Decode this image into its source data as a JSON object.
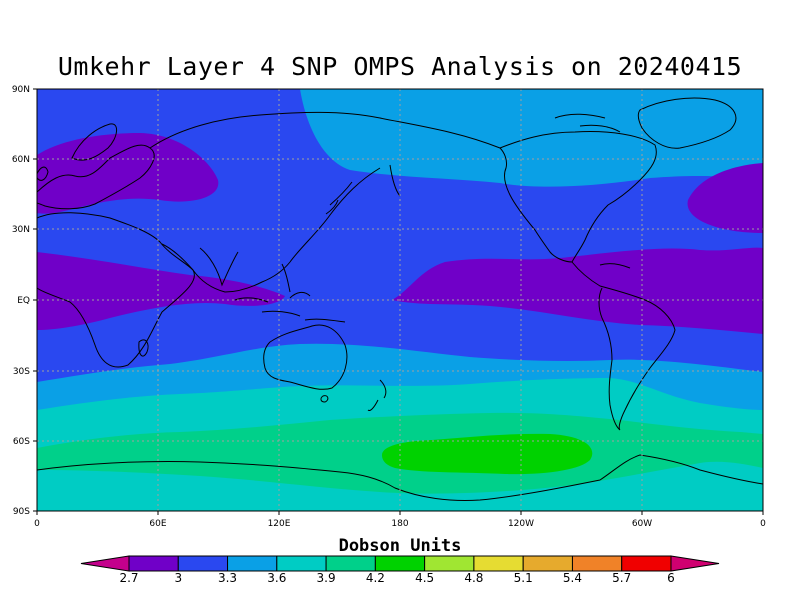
{
  "title": "Umkehr Layer 4 SNP OMPS Analysis on 20240415",
  "colorbar": {
    "title": "Dobson Units",
    "labels": [
      "2.7",
      "3",
      "3.3",
      "3.6",
      "3.9",
      "4.2",
      "4.5",
      "4.8",
      "5.1",
      "5.4",
      "5.7",
      "6"
    ],
    "colors": [
      "#c4008c",
      "#7000c8",
      "#2a48f0",
      "#0aa0e6",
      "#00ccc4",
      "#00d08a",
      "#00d200",
      "#a0e632",
      "#e6dc32",
      "#e6aa2d",
      "#f08228",
      "#f00000",
      "#d00070"
    ]
  },
  "map": {
    "projection": "equirectangular",
    "lon_range": [
      0,
      360
    ],
    "lat_range": [
      -90,
      90
    ],
    "xticks": [
      "0",
      "60E",
      "120E",
      "180",
      "120W",
      "60W",
      "0"
    ],
    "yticks": [
      "90N",
      "60N",
      "30N",
      "EQ",
      "30S",
      "60S",
      "90S"
    ],
    "gridlines": true,
    "field_units": "Dobson Units"
  }
}
